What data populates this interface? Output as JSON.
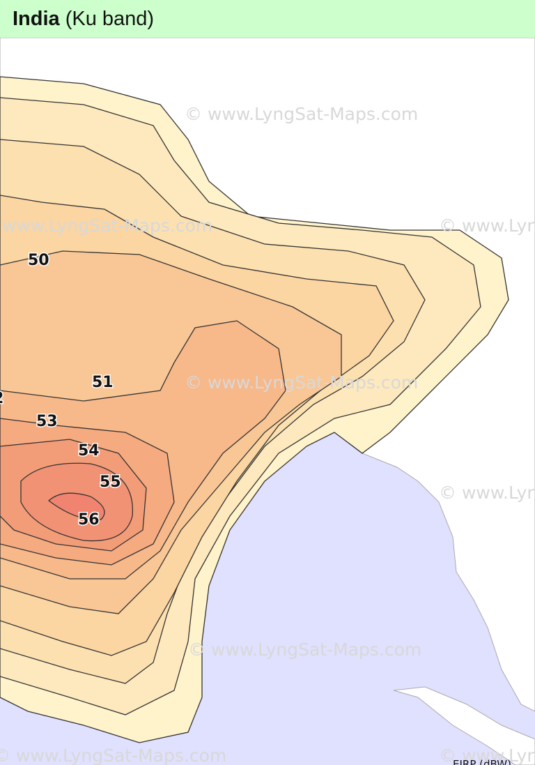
{
  "header": {
    "title": "India",
    "subtitle": "(Ku band)"
  },
  "map": {
    "contour_labels": [
      "50",
      "51",
      "2",
      "53",
      "54",
      "55",
      "56"
    ],
    "watermarks": [
      "© www.LyngSat-Maps.com",
      "© www.LyngSat-Maps.com",
      "© www.LyngSat-Maps.com",
      "© www.LyngSat-Maps.com",
      "© www.LyngSat-Maps.com",
      "© www.LyngSat-Maps.com",
      "© www.LyngSat-Maps.com",
      "© www.LyngSat-Maps.com"
    ],
    "legend": "EIRP (dBW)"
  }
}
